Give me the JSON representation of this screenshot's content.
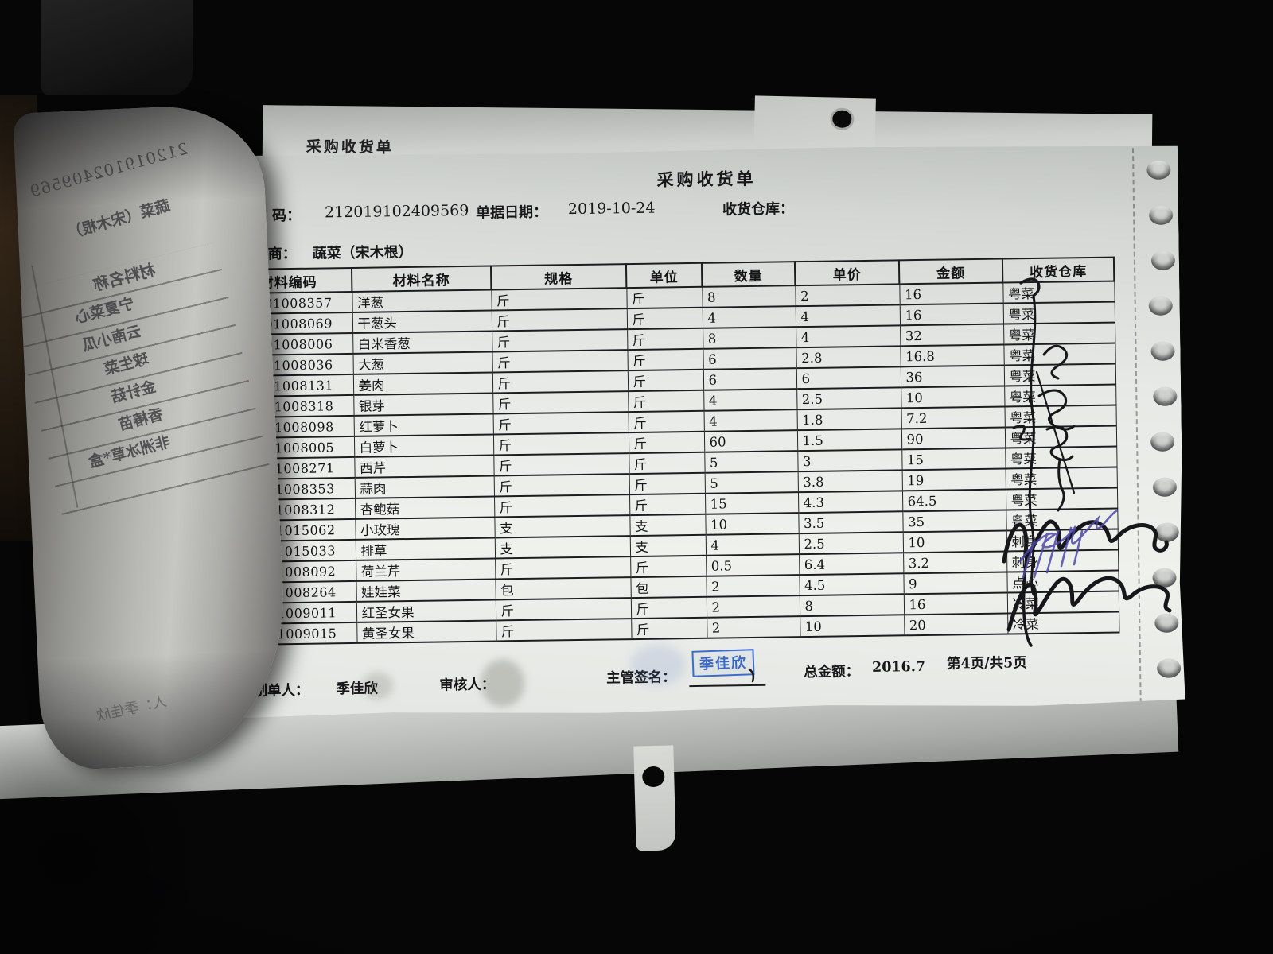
{
  "photo_note": "photograph of a dot-matrix printed purchase receipt on tractor-feed paper",
  "back_sheet": {
    "title": "采购收货单"
  },
  "document": {
    "title": "采购收货单",
    "info": {
      "code_label_visible": "码：",
      "code_value": "212019102409569",
      "date_label": "单据日期：",
      "date_value": "2019-10-24",
      "warehouse_label": "收货仓库：",
      "supplier_label_visible": "商：",
      "supplier_value": "蔬菜（宋木根）"
    },
    "table": {
      "headers": [
        "材料编码",
        "材料名称",
        "规格",
        "单位",
        "数量",
        "单价",
        "金额",
        "收货仓库"
      ],
      "rows": [
        [
          "00101008357",
          "洋葱",
          "斤",
          "斤",
          "8",
          "2",
          "16",
          "粤菜"
        ],
        [
          "00101008069",
          "干葱头",
          "斤",
          "斤",
          "4",
          "4",
          "16",
          "粤菜"
        ],
        [
          "00101008006",
          "白米香葱",
          "斤",
          "斤",
          "8",
          "4",
          "32",
          "粤菜"
        ],
        [
          "00101008036",
          "大葱",
          "斤",
          "斤",
          "6",
          "2.8",
          "16.8",
          "粤菜"
        ],
        [
          "00101008131",
          "姜肉",
          "斤",
          "斤",
          "6",
          "6",
          "36",
          "粤菜"
        ],
        [
          "00101008318",
          "银芽",
          "斤",
          "斤",
          "4",
          "2.5",
          "10",
          "粤菜"
        ],
        [
          "00101008098",
          "红萝卜",
          "斤",
          "斤",
          "4",
          "1.8",
          "7.2",
          "粤菜"
        ],
        [
          "00101008005",
          "白萝卜",
          "斤",
          "斤",
          "60",
          "1.5",
          "90",
          "粤菜"
        ],
        [
          "00101008271",
          "西芹",
          "斤",
          "斤",
          "5",
          "3",
          "15",
          "粤菜"
        ],
        [
          "00101008353",
          "蒜肉",
          "斤",
          "斤",
          "5",
          "3.8",
          "19",
          "粤菜"
        ],
        [
          "00101008312",
          "杏鲍菇",
          "斤",
          "斤",
          "15",
          "4.3",
          "64.5",
          "粤菜"
        ],
        [
          "00101015062",
          "小玫瑰",
          "支",
          "支",
          "10",
          "3.5",
          "35",
          "粤菜"
        ],
        [
          "00101015033",
          "排草",
          "支",
          "支",
          "4",
          "2.5",
          "10",
          "刺身"
        ],
        [
          "00101008092",
          "荷兰芹",
          "斤",
          "斤",
          "0.5",
          "6.4",
          "3.2",
          "刺身"
        ],
        [
          "00101008264",
          "娃娃菜",
          "包",
          "包",
          "2",
          "4.5",
          "9",
          "点心"
        ],
        [
          "00101009011",
          "红圣女果",
          "斤",
          "斤",
          "2",
          "8",
          "16",
          "冷菜"
        ],
        [
          "00101009015",
          "黄圣女果",
          "斤",
          "斤",
          "2",
          "10",
          "20",
          "冷菜"
        ]
      ]
    },
    "footer": {
      "maker_label": "制单人：",
      "maker_value": "季佳欣",
      "auditor_label": "审核人：",
      "supervisor_label": "主管签名：",
      "supervisor_stamp": "季佳欣",
      "total_label": "总金额：",
      "total_value": "2016.7",
      "page_info": "第4页/共5页"
    },
    "stamp_color": "#3e6cc9"
  },
  "curled_page": {
    "doc_code_mirrored": "212019102409569",
    "supplier_mirrored": "蔬菜（宋木根）",
    "table_header_mirrored": "材料名称",
    "items_mirrored": [
      "宁夏菜心",
      "云南小瓜",
      "球生菜",
      "金针菇",
      "香椿苗",
      "非洲冰草*盒"
    ],
    "footer_mirrored": "人：季佳欣"
  }
}
